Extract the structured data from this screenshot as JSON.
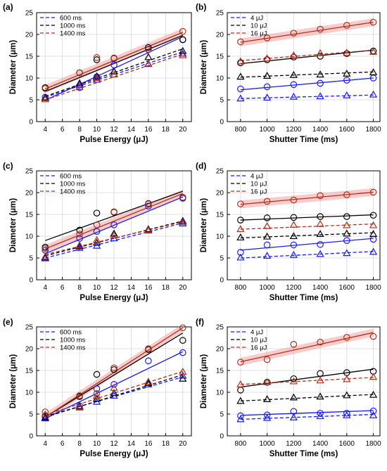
{
  "figure": {
    "legend_energy_fit_series": [
      "600 ms",
      "1000 ms",
      "1400 ms"
    ],
    "legend_shutter_fit_series": [
      "4 μJ",
      "10 μJ",
      "16 μJ"
    ],
    "colors": {
      "blue": "#1a1aff",
      "black": "#000000",
      "red": "#b03018",
      "band": "#f2a3a3"
    }
  },
  "chart_data": [
    {
      "panel": "(a)",
      "type": "scatter",
      "xlabel": "Pulse Energy (μJ)",
      "ylabel": "Diameter (μm)",
      "xlim": [
        3,
        21
      ],
      "ylim": [
        0,
        25
      ],
      "xticks": [
        4,
        6,
        8,
        10,
        12,
        14,
        16,
        18,
        20
      ],
      "yticks": [
        0,
        5,
        10,
        15,
        20,
        25
      ],
      "grid": true,
      "legend": "top-left",
      "shaded_band": "1400 ms circle fit",
      "x": [
        4,
        8,
        10,
        12,
        16,
        20
      ],
      "series": [
        {
          "name": "600 ms",
          "color": "blue",
          "marker": "circle",
          "values": [
            5.6,
            7.8,
            10.3,
            13.0,
            16.5,
            18.8
          ],
          "fit": [
            4.9,
            19.5
          ]
        },
        {
          "name": "1000 ms",
          "color": "black",
          "marker": "circle",
          "values": [
            7.8,
            11.2,
            14.2,
            14.5,
            17.0,
            18.8
          ],
          "fit": [
            6.9,
            19.8
          ]
        },
        {
          "name": "1400 ms",
          "color": "red",
          "marker": "circle",
          "values": [
            7.6,
            11.2,
            14.7,
            14.6,
            16.6,
            20.7
          ],
          "fit": [
            7.5,
            20.5
          ]
        },
        {
          "name": "600 ms",
          "color": "blue",
          "marker": "triangle",
          "values": [
            5.4,
            8.4,
            9.6,
            11.5,
            13.2,
            15.6
          ],
          "fit": [
            5.6,
            16.0
          ],
          "dashed": true
        },
        {
          "name": "1000 ms",
          "color": "black",
          "marker": "triangle",
          "values": [
            5.5,
            8.8,
            10.4,
            11.5,
            14.8,
            16.2
          ],
          "fit": [
            5.8,
            16.7
          ],
          "dashed": true
        },
        {
          "name": "1400 ms",
          "color": "red",
          "marker": "triangle",
          "values": [
            5.1,
            7.9,
            10.0,
            10.8,
            13.3,
            15.2
          ],
          "fit": [
            5.0,
            15.5
          ],
          "dashed": true
        }
      ]
    },
    {
      "panel": "(b)",
      "type": "scatter",
      "xlabel": "Shutter Time (ms)",
      "ylabel": "Diameter (μm)",
      "xlim": [
        700,
        1850
      ],
      "ylim": [
        0,
        25
      ],
      "xticks": [
        800,
        1000,
        1200,
        1400,
        1600,
        1800
      ],
      "yticks": [
        0,
        5,
        10,
        15,
        20,
        25
      ],
      "grid": true,
      "legend": "top-left",
      "shaded_band": "16 μJ circle fit",
      "x": [
        800,
        1000,
        1200,
        1400,
        1600,
        1800
      ],
      "series": [
        {
          "name": "4 μJ",
          "color": "blue",
          "marker": "circle",
          "values": [
            7.5,
            8.0,
            8.5,
            8.8,
            9.5,
            10.0
          ],
          "fit": [
            7.3,
            10.0
          ]
        },
        {
          "name": "10 μJ",
          "color": "black",
          "marker": "circle",
          "values": [
            13.5,
            14.2,
            14.8,
            15.0,
            15.6,
            16.2
          ],
          "fit": [
            13.3,
            16.4
          ]
        },
        {
          "name": "16 μJ",
          "color": "red",
          "marker": "circle",
          "values": [
            18.3,
            19.2,
            20.3,
            21.2,
            22.1,
            22.8
          ],
          "fit": [
            18.2,
            22.8
          ]
        },
        {
          "name": "4 μJ",
          "color": "blue",
          "marker": "triangle",
          "values": [
            5.3,
            5.5,
            5.7,
            5.8,
            6.0,
            6.2
          ],
          "fit": [
            5.3,
            6.1
          ],
          "dashed": true
        },
        {
          "name": "10 μJ",
          "color": "black",
          "marker": "triangle",
          "values": [
            10.3,
            10.5,
            10.7,
            10.8,
            11.0,
            11.3
          ],
          "fit": [
            10.2,
            11.4
          ],
          "dashed": true
        },
        {
          "name": "16 μJ",
          "color": "red",
          "marker": "triangle",
          "values": [
            13.8,
            14.5,
            15.2,
            15.7,
            15.8,
            16.0
          ],
          "fit": [
            14.0,
            16.4
          ],
          "dashed": true
        }
      ]
    },
    {
      "panel": "(c)",
      "type": "scatter",
      "xlabel": "Pulse Energy (μJ)",
      "ylabel": "Diameter (μm)",
      "xlim": [
        3,
        21
      ],
      "ylim": [
        0,
        25
      ],
      "xticks": [
        4,
        6,
        8,
        10,
        12,
        14,
        16,
        18,
        20
      ],
      "yticks": [
        0,
        5,
        10,
        15,
        20,
        25
      ],
      "grid": true,
      "legend": "top-left",
      "shaded_band": "1400 ms circle fit",
      "x": [
        4,
        8,
        10,
        12,
        16,
        20
      ],
      "series": [
        {
          "name": "600 ms",
          "color": "blue",
          "marker": "circle",
          "values": [
            6.8,
            9.5,
            11.1,
            12.6,
            16.9,
            18.7
          ],
          "fit": [
            6.0,
            19.0
          ]
        },
        {
          "name": "1000 ms",
          "color": "black",
          "marker": "circle",
          "values": [
            7.5,
            11.4,
            15.3,
            15.5,
            17.5,
            18.9
          ],
          "fit": [
            9.0,
            20.3
          ]
        },
        {
          "name": "1400 ms",
          "color": "red",
          "marker": "circle",
          "values": [
            7.2,
            10.5,
            12.6,
            15.6,
            17.4,
            18.9
          ],
          "fit": [
            7.1,
            19.8
          ]
        },
        {
          "name": "600 ms",
          "color": "blue",
          "marker": "triangle",
          "values": [
            4.9,
            7.3,
            7.8,
            9.5,
            11.3,
            12.9
          ],
          "fit": [
            5.0,
            13.0
          ],
          "dashed": true
        },
        {
          "name": "1000 ms",
          "color": "black",
          "marker": "triangle",
          "values": [
            5.1,
            7.7,
            8.5,
            10.6,
            11.6,
            13.5
          ],
          "fit": [
            5.5,
            13.5
          ],
          "dashed": true
        },
        {
          "name": "1400 ms",
          "color": "red",
          "marker": "triangle",
          "values": [
            5.3,
            7.9,
            9.1,
            10.2,
            11.4,
            13.2
          ],
          "fit": [
            5.8,
            13.3
          ],
          "dashed": true
        }
      ]
    },
    {
      "panel": "(d)",
      "type": "scatter",
      "xlabel": "Shutter Time (ms)",
      "ylabel": "Diameter (μm)",
      "xlim": [
        700,
        1850
      ],
      "ylim": [
        0,
        25
      ],
      "xticks": [
        800,
        1000,
        1200,
        1400,
        1600,
        1800
      ],
      "yticks": [
        0,
        5,
        10,
        15,
        20,
        25
      ],
      "grid": true,
      "legend": "top-left",
      "shaded_band": "16 μJ circle fit",
      "x": [
        800,
        1000,
        1200,
        1400,
        1600,
        1800
      ],
      "series": [
        {
          "name": "4 μJ",
          "color": "blue",
          "marker": "circle",
          "values": [
            6.3,
            8.0,
            8.0,
            8.1,
            9.0,
            9.3
          ],
          "fit": [
            6.8,
            9.5
          ]
        },
        {
          "name": "10 μJ",
          "color": "black",
          "marker": "circle",
          "values": [
            13.7,
            14.2,
            14.3,
            14.5,
            14.5,
            14.8
          ],
          "fit": [
            13.7,
            14.9
          ]
        },
        {
          "name": "16 μJ",
          "color": "red",
          "marker": "circle",
          "values": [
            17.4,
            18.0,
            18.3,
            19.3,
            19.5,
            20.1
          ],
          "fit": [
            17.3,
            20.1
          ]
        },
        {
          "name": "4 μJ",
          "color": "blue",
          "marker": "triangle",
          "values": [
            5.1,
            5.5,
            5.7,
            5.9,
            6.1,
            6.4
          ],
          "fit": [
            5.0,
            6.5
          ],
          "dashed": true
        },
        {
          "name": "10 μJ",
          "color": "black",
          "marker": "triangle",
          "values": [
            9.7,
            9.9,
            10.0,
            10.5,
            10.6,
            10.5
          ],
          "fit": [
            9.6,
            10.8
          ],
          "dashed": true
        },
        {
          "name": "16 μJ",
          "color": "red",
          "marker": "triangle",
          "values": [
            11.6,
            12.3,
            12.6,
            12.8,
            12.5,
            12.5
          ],
          "fit": [
            11.6,
            12.8
          ],
          "dashed": true
        }
      ]
    },
    {
      "panel": "(e)",
      "type": "scatter",
      "xlabel": "Pulse Energy (μJ)",
      "ylabel": "Diameter (μm)",
      "xlim": [
        3,
        21
      ],
      "ylim": [
        0,
        25
      ],
      "xticks": [
        4,
        6,
        8,
        10,
        12,
        14,
        16,
        18,
        20
      ],
      "yticks": [
        0,
        5,
        10,
        15,
        20,
        25
      ],
      "grid": true,
      "legend": "top-left",
      "shaded_band": "1400 ms circle fit",
      "x": [
        4,
        8,
        10,
        12,
        16,
        20
      ],
      "series": [
        {
          "name": "600 ms",
          "color": "blue",
          "marker": "circle",
          "values": [
            4.6,
            6.9,
            10.8,
            11.8,
            17.2,
            19.1
          ],
          "fit": [
            4.0,
            19.3
          ]
        },
        {
          "name": "1000 ms",
          "color": "black",
          "marker": "circle",
          "values": [
            4.4,
            9.0,
            14.1,
            15.2,
            19.8,
            21.9
          ],
          "fit": [
            4.3,
            23.6
          ]
        },
        {
          "name": "1400 ms",
          "color": "red",
          "marker": "circle",
          "values": [
            5.5,
            9.2,
            9.7,
            15.6,
            20.0,
            24.8
          ],
          "fit": [
            4.3,
            24.8
          ]
        },
        {
          "name": "600 ms",
          "color": "blue",
          "marker": "triangle",
          "values": [
            4.0,
            6.5,
            7.8,
            9.2,
            11.8,
            13.8
          ],
          "fit": [
            4.5,
            13.5
          ],
          "dashed": true
        },
        {
          "name": "1000 ms",
          "color": "black",
          "marker": "triangle",
          "values": [
            4.2,
            6.8,
            8.5,
            9.8,
            12.1,
            13.1
          ],
          "fit": [
            4.3,
            14.0
          ],
          "dashed": true
        },
        {
          "name": "1400 ms",
          "color": "red",
          "marker": "triangle",
          "values": [
            4.9,
            6.6,
            9.2,
            11.0,
            12.4,
            14.7
          ],
          "fit": [
            4.8,
            14.8
          ],
          "dashed": true
        }
      ]
    },
    {
      "panel": "(f)",
      "type": "scatter",
      "xlabel": "Shutter Time (ms)",
      "ylabel": "Diameter (μm)",
      "xlim": [
        700,
        1850
      ],
      "ylim": [
        0,
        25
      ],
      "xticks": [
        800,
        1000,
        1200,
        1400,
        1600,
        1800
      ],
      "yticks": [
        0,
        5,
        10,
        15,
        20,
        25
      ],
      "grid": true,
      "legend": "top-left",
      "shaded_band": "16 μJ circle fit",
      "x": [
        800,
        1000,
        1200,
        1400,
        1600,
        1800
      ],
      "series": [
        {
          "name": "4 μJ",
          "color": "blue",
          "marker": "circle",
          "values": [
            4.6,
            4.8,
            5.6,
            5.2,
            5.2,
            5.7
          ],
          "fit": [
            4.7,
            5.8
          ]
        },
        {
          "name": "10 μJ",
          "color": "black",
          "marker": "circle",
          "values": [
            10.5,
            12.3,
            13.1,
            14.3,
            14.5,
            14.8
          ],
          "fit": [
            11.2,
            15.3
          ]
        },
        {
          "name": "16 μJ",
          "color": "red",
          "marker": "circle",
          "values": [
            16.9,
            17.5,
            21.0,
            21.5,
            22.6,
            22.8
          ],
          "fit": [
            17.0,
            23.7
          ]
        },
        {
          "name": "4 μJ",
          "color": "blue",
          "marker": "triangle",
          "values": [
            3.8,
            4.1,
            4.2,
            4.5,
            4.7,
            4.7
          ],
          "fit": [
            3.8,
            4.9
          ],
          "dashed": true
        },
        {
          "name": "10 μJ",
          "color": "black",
          "marker": "triangle",
          "values": [
            8.0,
            8.4,
            8.8,
            9.0,
            9.3,
            9.4
          ],
          "fit": [
            8.0,
            9.5
          ],
          "dashed": true
        },
        {
          "name": "16 μJ",
          "color": "red",
          "marker": "triangle",
          "values": [
            11.8,
            12.3,
            12.5,
            12.7,
            13.0,
            13.5
          ],
          "fit": [
            11.8,
            13.4
          ],
          "dashed": true
        }
      ]
    }
  ]
}
